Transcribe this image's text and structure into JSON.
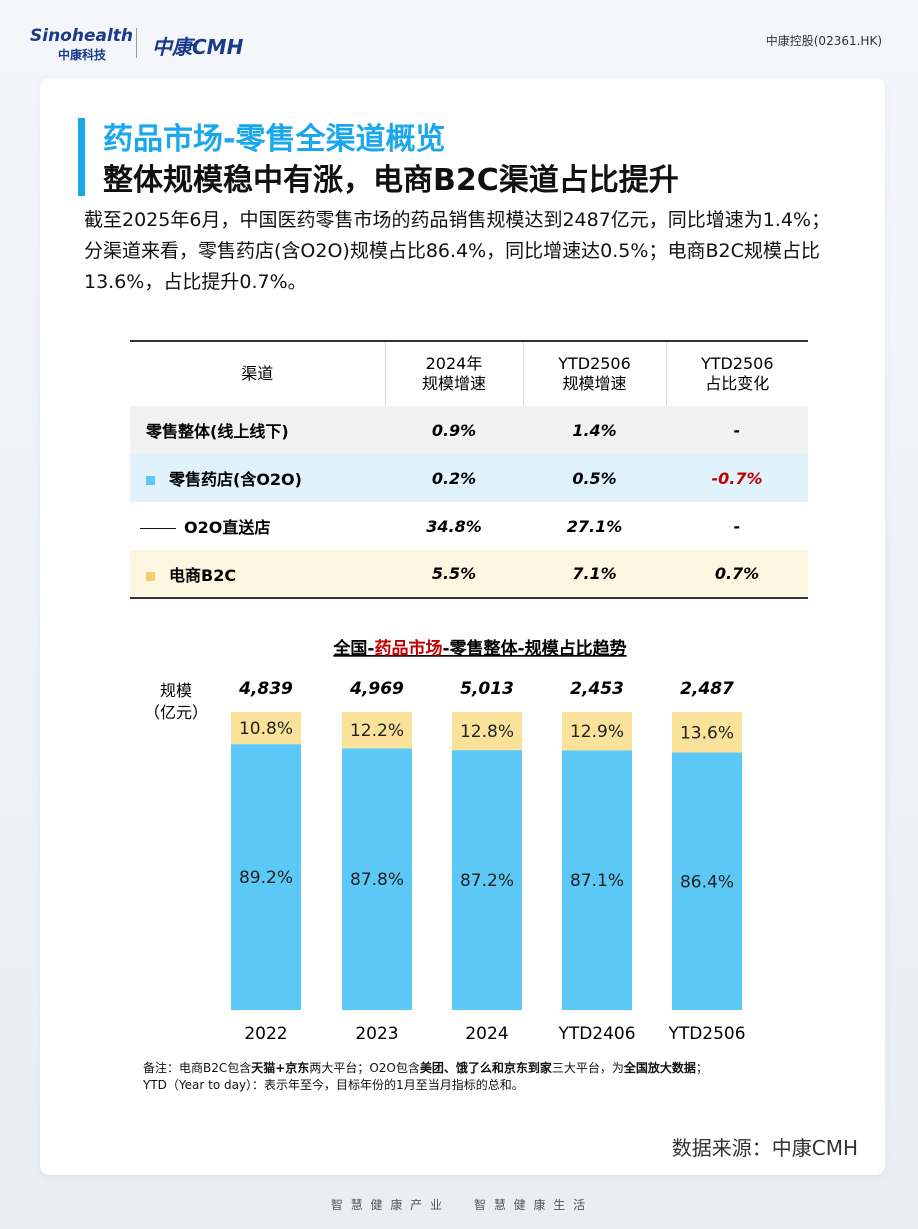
{
  "header": {
    "logo_en": "Sinohealth",
    "logo_cn": "中康科技",
    "brand": "中康CMH",
    "stock": "中康控股(02361.HK)"
  },
  "title": [
    "药品市场-零售全渠道概览",
    "整体规模稳中有涨，电商B2C渠道占比提升"
  ],
  "paragraphs": [
    "截至2025年6月，中国医药零售市场的药品销售规模达到2487亿元，同比增速为1.4%；",
    "分渠道来看，零售药店(含O2O)规模占比86.4%，同比增速达0.5%；电商B2C规模占比13.6%，占比提升0.7%。"
  ],
  "table": {
    "header": [
      [
        "渠道"
      ],
      [
        "2024年",
        "规模增速"
      ],
      [
        "YTD2506",
        "规模增速"
      ],
      [
        "YTD2506",
        "占比变化"
      ]
    ],
    "rows": [
      {
        "cells": [
          "零售整体(线上线下)",
          "0.9%",
          "1.4%",
          "-"
        ],
        "bg": "#f2f2f2",
        "marker": "none"
      },
      {
        "cells": [
          "零售药店(含O2O)",
          "0.2%",
          "0.5%",
          "-0.7%"
        ],
        "bg": "#e0f3fd",
        "marker": "square",
        "color": "#5bc8f5",
        "negative_color": "#c00000"
      },
      {
        "cells": [
          "O2O直送店",
          "34.8%",
          "27.1%",
          "-"
        ],
        "bg": "#ffffff",
        "marker": "line"
      },
      {
        "cells": [
          "电商B2C",
          "5.5%",
          "7.1%",
          "0.7%"
        ],
        "bg": "#fdf6e0",
        "marker": "square",
        "color": "#f5d06a"
      }
    ]
  },
  "chart_data": {
    "type": "stacked_bar",
    "title_parts": [
      "全国-",
      "药品市场",
      "-零售整体-规模占比趋势"
    ],
    "title_accent_color": "#c00000",
    "ylabel": [
      "规模",
      "（亿元）"
    ],
    "categories": [
      "2022",
      "2023",
      "2024",
      "YTD2406",
      "YTD2506"
    ],
    "totals": [
      {
        "value": 4839,
        "label": "4,839"
      },
      {
        "value": 4969,
        "label": "4,969"
      },
      {
        "value": 5013,
        "label": "5,013"
      },
      {
        "value": 2453,
        "label": "2,453"
      },
      {
        "value": 2487,
        "label": "2,487"
      }
    ],
    "ylim": [
      0,
      100
    ],
    "series": [
      {
        "color": "#5bc8f5",
        "values": [
          89.2,
          87.8,
          87.2,
          87.1,
          86.4
        ],
        "value_labels": [
          "89.2%",
          "87.8%",
          "87.2%",
          "87.1%",
          "86.4%"
        ]
      },
      {
        "color": "#fbe29a",
        "values": [
          10.8,
          12.2,
          12.8,
          12.9,
          13.6
        ],
        "value_labels": [
          "10.8%",
          "12.2%",
          "12.8%",
          "12.9%",
          "13.6%"
        ]
      }
    ]
  },
  "notes": [
    [
      {
        "text": "备注：电商B2C包含"
      },
      {
        "text": "天猫+京东",
        "bold": true
      },
      {
        "text": "两大平台；O2O包含"
      },
      {
        "text": "美团、饿了么和京东到家",
        "bold": true
      },
      {
        "text": "三大平台，为"
      },
      {
        "text": "全国放大数据",
        "bold": true
      },
      {
        "text": "；"
      }
    ],
    [
      {
        "text": "YTD（Year to day）：表示年至今，目标年份的1月至当月指标的总和。"
      }
    ]
  ],
  "source": "数据来源：中康CMH",
  "footer": [
    "智 慧 健 康 产 业",
    "智 慧 健 康 生 活"
  ]
}
